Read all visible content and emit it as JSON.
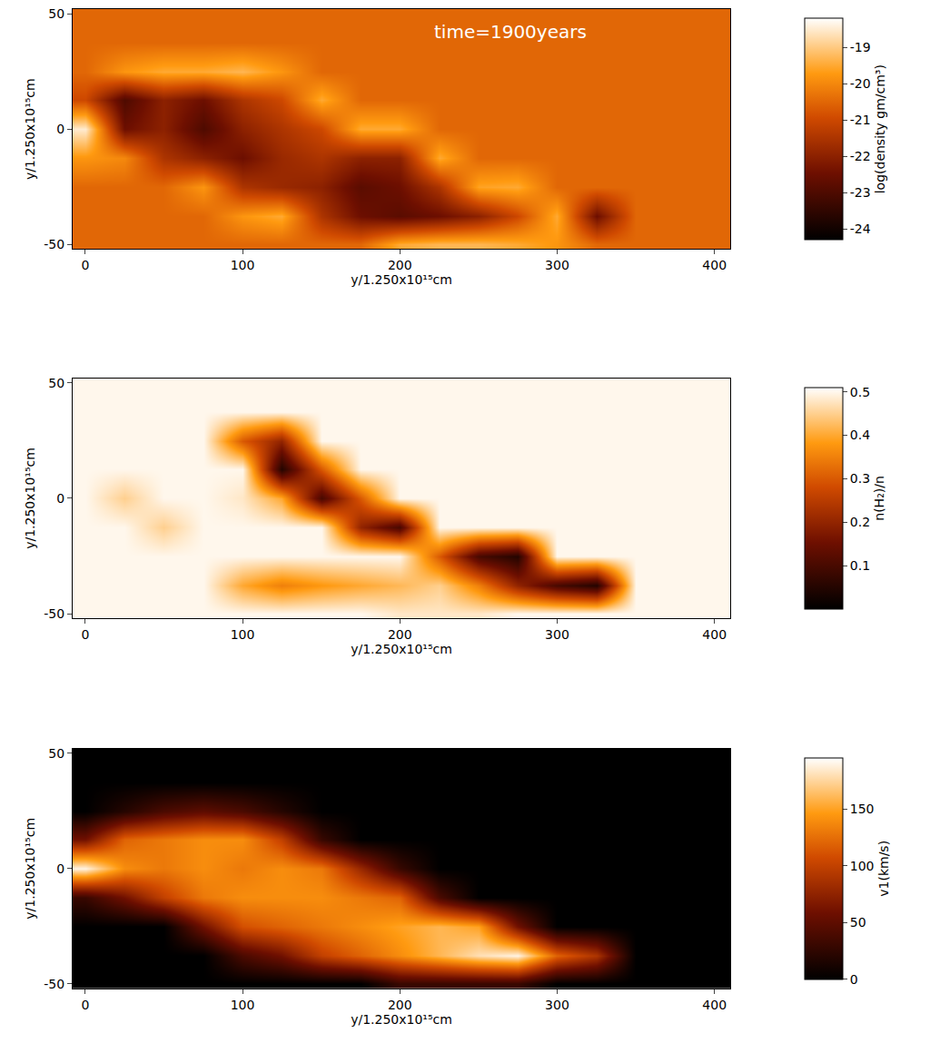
{
  "chart_data": [
    {
      "type": "heatmap",
      "annotations": [
        {
          "text": "time=1900years",
          "x": 270,
          "y": 42
        }
      ],
      "xlabel": "y/1.250x10¹⁵cm",
      "ylabel": "y/1.250x10¹⁵cm",
      "xlim": [
        -8,
        410
      ],
      "ylim": [
        -52,
        52
      ],
      "xticks": [
        0,
        100,
        200,
        300,
        400
      ],
      "yticks": [
        -50,
        0,
        50
      ],
      "x": [
        0,
        25,
        50,
        75,
        100,
        125,
        150,
        175,
        200,
        225,
        250,
        275,
        300,
        325,
        350,
        375,
        400
      ],
      "y": [
        -50,
        -37.5,
        -25,
        -12.5,
        0,
        12.5,
        25,
        37.5,
        50
      ],
      "cells": [
        [
          -20.5,
          -20.5,
          -20.5,
          -20.5,
          -20.5,
          -20.5,
          -20.5,
          -20.5,
          -19.5,
          -19.3,
          -19.3,
          -19.5,
          -19.8,
          -20.5,
          -20.5,
          -20.5,
          -20.5
        ],
        [
          -20.5,
          -20.5,
          -20.5,
          -20.5,
          -19.8,
          -19.5,
          -21.5,
          -22.5,
          -22.8,
          -22.5,
          -22,
          -21,
          -19.5,
          -22.5,
          -20.5,
          -20.5,
          -20.5
        ],
        [
          -20.5,
          -20.5,
          -20.5,
          -19.8,
          -21.5,
          -21.8,
          -22,
          -22.8,
          -22.5,
          -21.5,
          -19.6,
          -19.5,
          -20.5,
          -20.5,
          -20.5,
          -20.5,
          -20.5
        ],
        [
          -19.8,
          -20,
          -21.5,
          -22,
          -22.5,
          -21.8,
          -21.5,
          -22,
          -22,
          -19.5,
          -20.5,
          -20.5,
          -20.5,
          -20.5,
          -20.5,
          -20.5,
          -20.5
        ],
        [
          -18.5,
          -22.5,
          -22,
          -23,
          -22,
          -21.5,
          -21,
          -19.5,
          -19.5,
          -20.5,
          -20.5,
          -20.5,
          -20.5,
          -20.5,
          -20.5,
          -20.5,
          -20.5
        ],
        [
          -21,
          -23,
          -22,
          -22.5,
          -21.5,
          -21,
          -19.5,
          -20.5,
          -20.5,
          -20.5,
          -20.5,
          -20.5,
          -20.5,
          -20.5,
          -20.5,
          -20.5,
          -20.5
        ],
        [
          -20.5,
          -19.8,
          -19.5,
          -19.5,
          -19.3,
          -19.8,
          -20.5,
          -20.5,
          -20.5,
          -20.5,
          -20.5,
          -20.5,
          -20.5,
          -20.5,
          -20.5,
          -20.5,
          -20.5
        ],
        [
          -20.5,
          -20.5,
          -20.5,
          -20.5,
          -20.5,
          -20.5,
          -20.5,
          -20.5,
          -20.5,
          -20.5,
          -20.5,
          -20.5,
          -20.5,
          -20.5,
          -20.5,
          -20.5,
          -20.5
        ],
        [
          -20.5,
          -20.5,
          -20.5,
          -20.5,
          -20.5,
          -20.5,
          -20.5,
          -20.5,
          -20.5,
          -20.5,
          -20.5,
          -20.5,
          -20.5,
          -20.5,
          -20.5,
          -20.5,
          -20.5
        ]
      ],
      "colorbar_label": "log(density gm/cm³)",
      "color_range": [
        -24.3,
        -18.2
      ],
      "color_ticks": [
        -24,
        -23,
        -22,
        -21,
        -20,
        -19
      ]
    },
    {
      "type": "heatmap",
      "xlabel": "y/1.250x10¹⁵cm",
      "ylabel": "y/1.250x10¹⁵cm",
      "xlim": [
        -8,
        410
      ],
      "ylim": [
        -52,
        52
      ],
      "xticks": [
        0,
        100,
        200,
        300,
        400
      ],
      "yticks": [
        -50,
        0,
        50
      ],
      "x": [
        0,
        25,
        50,
        75,
        100,
        125,
        150,
        175,
        200,
        225,
        250,
        275,
        300,
        325,
        350,
        375,
        400
      ],
      "y": [
        -50,
        -37.5,
        -25,
        -12.5,
        0,
        12.5,
        25,
        37.5,
        50
      ],
      "cells": [
        [
          0.5,
          0.5,
          0.5,
          0.5,
          0.5,
          0.5,
          0.5,
          0.5,
          0.48,
          0.48,
          0.48,
          0.5,
          0.5,
          0.5,
          0.5,
          0.5,
          0.5
        ],
        [
          0.5,
          0.5,
          0.5,
          0.5,
          0.4,
          0.35,
          0.38,
          0.4,
          0.42,
          0.45,
          0.35,
          0.2,
          0.1,
          0.05,
          0.5,
          0.5,
          0.5
        ],
        [
          0.5,
          0.5,
          0.5,
          0.5,
          0.5,
          0.5,
          0.5,
          0.5,
          0.5,
          0.3,
          0.1,
          0.05,
          0.5,
          0.5,
          0.5,
          0.5,
          0.5
        ],
        [
          0.5,
          0.5,
          0.45,
          0.5,
          0.5,
          0.5,
          0.5,
          0.2,
          0.1,
          0.5,
          0.5,
          0.5,
          0.5,
          0.5,
          0.5,
          0.5,
          0.5
        ],
        [
          0.5,
          0.45,
          0.5,
          0.5,
          0.48,
          0.4,
          0.1,
          0.3,
          0.5,
          0.5,
          0.5,
          0.5,
          0.5,
          0.5,
          0.5,
          0.5,
          0.5
        ],
        [
          0.5,
          0.5,
          0.5,
          0.5,
          0.5,
          0.05,
          0.3,
          0.5,
          0.5,
          0.5,
          0.5,
          0.5,
          0.5,
          0.5,
          0.5,
          0.5,
          0.5
        ],
        [
          0.5,
          0.5,
          0.5,
          0.5,
          0.3,
          0.2,
          0.5,
          0.5,
          0.5,
          0.5,
          0.5,
          0.5,
          0.5,
          0.5,
          0.5,
          0.5,
          0.5
        ],
        [
          0.5,
          0.5,
          0.5,
          0.5,
          0.5,
          0.5,
          0.5,
          0.5,
          0.5,
          0.5,
          0.5,
          0.5,
          0.5,
          0.5,
          0.5,
          0.5,
          0.5
        ],
        [
          0.5,
          0.5,
          0.5,
          0.5,
          0.5,
          0.5,
          0.5,
          0.5,
          0.5,
          0.5,
          0.5,
          0.5,
          0.5,
          0.5,
          0.5,
          0.5,
          0.5
        ]
      ],
      "colorbar_label": "n(H₂)/n",
      "color_range": [
        0,
        0.51
      ],
      "color_ticks": [
        0.1,
        0.2,
        0.3,
        0.4,
        0.5
      ]
    },
    {
      "type": "heatmap",
      "xlabel": "y/1.250x10¹⁵cm",
      "ylabel": "y/1.250x10¹⁵cm",
      "xlim": [
        -8,
        410
      ],
      "ylim": [
        -52,
        52
      ],
      "xticks": [
        0,
        100,
        200,
        300,
        400
      ],
      "yticks": [
        -50,
        0,
        50
      ],
      "x": [
        0,
        25,
        50,
        75,
        100,
        125,
        150,
        175,
        200,
        225,
        250,
        275,
        300,
        325,
        350,
        375,
        400
      ],
      "y": [
        -50,
        -37.5,
        -25,
        -12.5,
        0,
        12.5,
        25,
        37.5,
        50
      ],
      "cells": [
        [
          0,
          0,
          0,
          0,
          0,
          0,
          0,
          0,
          30,
          30,
          30,
          30,
          0,
          0,
          0,
          0,
          0
        ],
        [
          0,
          0,
          0,
          0,
          40,
          60,
          100,
          120,
          140,
          160,
          180,
          190,
          120,
          90,
          0,
          0,
          0
        ],
        [
          0,
          0,
          0,
          60,
          110,
          120,
          130,
          140,
          150,
          160,
          150,
          60,
          0,
          0,
          0,
          0,
          0
        ],
        [
          30,
          60,
          100,
          130,
          140,
          140,
          140,
          130,
          120,
          40,
          0,
          0,
          0,
          0,
          0,
          0,
          0
        ],
        [
          190,
          140,
          130,
          140,
          130,
          140,
          130,
          80,
          30,
          0,
          0,
          0,
          0,
          0,
          0,
          0,
          0
        ],
        [
          60,
          120,
          130,
          140,
          140,
          100,
          30,
          0,
          0,
          0,
          0,
          0,
          0,
          0,
          0,
          0,
          0
        ],
        [
          0,
          20,
          40,
          50,
          40,
          20,
          0,
          0,
          0,
          0,
          0,
          0,
          0,
          0,
          0,
          0,
          0
        ],
        [
          0,
          0,
          0,
          0,
          0,
          0,
          0,
          0,
          0,
          0,
          0,
          0,
          0,
          0,
          0,
          0,
          0
        ],
        [
          0,
          0,
          0,
          0,
          0,
          0,
          0,
          0,
          0,
          0,
          0,
          0,
          0,
          0,
          0,
          0,
          0
        ]
      ],
      "colorbar_label": "v1(km/s)",
      "color_range": [
        0,
        195
      ],
      "color_ticks": [
        0,
        50,
        100,
        150
      ]
    }
  ]
}
